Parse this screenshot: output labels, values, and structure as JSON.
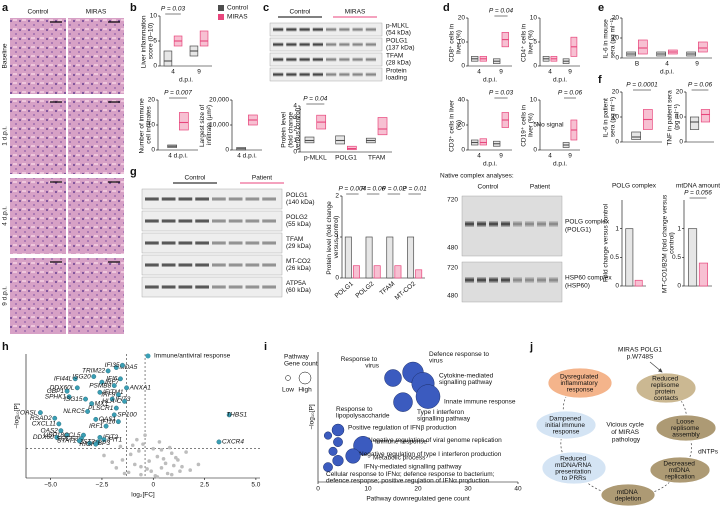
{
  "figure": {
    "panel_labels": [
      "a",
      "b",
      "c",
      "d",
      "e",
      "f",
      "g",
      "h",
      "i",
      "j"
    ],
    "legend": {
      "control": "Control",
      "miras": "MIRAS",
      "control_color": "#4d4d4d",
      "miras_color": "#e8467c"
    },
    "histology": {
      "columns": [
        "Control",
        "MIRAS"
      ],
      "rows": [
        "Baseline",
        "1 d.p.i.",
        "4 d.p.i.",
        "9 d.p.i."
      ]
    },
    "blot_c": {
      "groups": [
        "Control",
        "MIRAS"
      ],
      "rows": [
        [
          "p-MLKL",
          "(54 kDa)"
        ],
        [
          "POLG1",
          "(137 kDa)"
        ],
        [
          "TFAM",
          "(28 kDa)"
        ],
        [
          "Protein",
          "loading"
        ]
      ]
    },
    "blot_g": {
      "groups": [
        "Control",
        "Patient"
      ],
      "rows": [
        [
          "POLG1",
          "(140 kDa)"
        ],
        [
          "POLG2",
          "(55 kDa)"
        ],
        [
          "TFAM",
          "(29 kDa)"
        ],
        [
          "MT-CO2",
          "(26 kDa)"
        ],
        [
          "ATP5A",
          "(60 kDa)"
        ]
      ]
    },
    "native": {
      "title": "Native complex analyses:",
      "groups": [
        "Control",
        "Patient"
      ],
      "rows": [
        [
          "POLG complex",
          "(POLG1)"
        ],
        [
          "HSP60 complex",
          "(HSP60)"
        ]
      ],
      "markers": [
        720,
        480,
        720,
        480
      ]
    },
    "diagram": {
      "title": [
        "MIRAS POLG1",
        "p.W748S"
      ],
      "center": "Vicious cycle of MIRAS pathology",
      "side": "dNTPs",
      "nodes": [
        {
          "label": "Reduced replisome protein contacts",
          "color": "#cbb892"
        },
        {
          "label": "Loose replisome assembly",
          "color": "#ad9a74"
        },
        {
          "label": "Decreased mtDNA replication",
          "color": "#ad9a74"
        },
        {
          "label": "mtDNA depletion",
          "color": "#ad9a74"
        },
        {
          "label": "Reduced mtDNA/RNA presentation to PRRs",
          "color": "#d4e4f4"
        },
        {
          "label": "Dampened initial immune response",
          "color": "#d4e4f4"
        },
        {
          "label": "Dysregulated inflammatory response",
          "color": "#f4b48b"
        }
      ]
    }
  },
  "chart_data": [
    {
      "type": "box",
      "ylabel": "Liver inflammation score (0–10)",
      "ylim": [
        0,
        10
      ],
      "yticks": [
        0,
        5,
        10
      ],
      "categories": [
        "4",
        "9"
      ],
      "xlabel": "d.p.i.",
      "control": [
        [
          0,
          1,
          3
        ],
        [
          2,
          3,
          4
        ]
      ],
      "miras": [
        [
          4,
          5,
          6
        ],
        [
          4,
          5,
          7
        ]
      ],
      "pvalues": [
        "P = 0.03",
        null
      ]
    },
    {
      "type": "box",
      "ylabel": "Number of immune cell infiltrates",
      "ylim": [
        0,
        20
      ],
      "yticks": [
        0,
        10,
        20
      ],
      "categories": [
        "4 d.p.i."
      ],
      "control": [
        [
          1,
          1.5,
          2
        ]
      ],
      "miras": [
        [
          8,
          11,
          15
        ]
      ],
      "pvalues": [
        "P = 0.007"
      ]
    },
    {
      "type": "box",
      "ylabel": "Largest size of infiltrate (µm²)",
      "ylim": [
        0,
        20000
      ],
      "yticks": [
        0,
        {
          "value": 10000,
          "label": "10,000"
        },
        {
          "value": 20000,
          "label": "20,000"
        }
      ],
      "categories": [
        "4 d.p.i."
      ],
      "control": [
        [
          0,
          500,
          1000
        ]
      ],
      "miras": [
        [
          10000,
          12000,
          14000
        ]
      ],
      "pvalues": [
        null
      ]
    },
    {
      "type": "box",
      "ylabel": "Protein level (fold change versus control)",
      "ylim": [
        0,
        4
      ],
      "yticks": [
        0,
        1,
        2,
        3,
        4
      ],
      "categories": [
        "p-MLKL",
        "POLG1",
        "TFAM"
      ],
      "control": [
        [
          0.8,
          1,
          1.3
        ],
        [
          0.7,
          1,
          1.4
        ],
        [
          0.8,
          1,
          1.2
        ]
      ],
      "miras": [
        [
          2,
          2.6,
          3.2
        ],
        [
          0.2,
          0.3,
          0.5
        ],
        [
          1.5,
          2,
          3
        ]
      ],
      "pvalues": [
        "P = 0.04",
        null,
        null
      ]
    },
    {
      "type": "box",
      "ylabel": "CD8⁺ cells in liver (%)",
      "ylim": [
        0,
        20
      ],
      "yticks": [
        0,
        10,
        20
      ],
      "categories": [
        "4",
        "9"
      ],
      "xlabel": "d.p.i.",
      "control": [
        [
          2,
          3,
          4
        ],
        [
          1,
          2,
          3
        ]
      ],
      "miras": [
        [
          2,
          3,
          4
        ],
        [
          8,
          11,
          14
        ]
      ],
      "pvalues": [
        null,
        "P = 0.04"
      ]
    },
    {
      "type": "box",
      "ylabel": "CD4⁺ cells in liver (%)",
      "ylim": [
        0,
        10
      ],
      "yticks": [
        0,
        5,
        10
      ],
      "categories": [
        "4",
        "9"
      ],
      "xlabel": "d.p.i.",
      "control": [
        [
          1,
          1.5,
          2
        ],
        [
          0.5,
          1,
          1.5
        ]
      ],
      "miras": [
        [
          1,
          1.5,
          2
        ],
        [
          2,
          4,
          6
        ]
      ],
      "pvalues": [
        null,
        null
      ]
    },
    {
      "type": "box",
      "ylabel": "CD3⁺ cells in liver (%)",
      "ylim": [
        0,
        40
      ],
      "yticks": [
        0,
        20,
        40
      ],
      "categories": [
        "4",
        "9"
      ],
      "xlabel": "d.p.i.",
      "control": [
        [
          4,
          6,
          8
        ],
        [
          3,
          5,
          7
        ]
      ],
      "miras": [
        [
          4,
          6,
          9
        ],
        [
          18,
          24,
          30
        ]
      ],
      "pvalues": [
        null,
        "P = 0.03"
      ]
    },
    {
      "type": "box",
      "ylabel": "CD19⁺ cells in liver (%)",
      "ylim": [
        0,
        10
      ],
      "yticks": [
        0,
        5,
        10
      ],
      "categories": [
        "4",
        "9"
      ],
      "xlabel": "d.p.i.",
      "annotation": "No signal",
      "control": [
        null,
        [
          0.5,
          1,
          1.5
        ]
      ],
      "miras": [
        null,
        [
          2,
          4,
          6
        ]
      ],
      "pvalues": [
        null,
        "P = 0.06"
      ]
    },
    {
      "type": "box",
      "ylabel": "IL-6 in mouse sera (pg ml⁻¹)",
      "ylim": [
        0,
        20
      ],
      "yticks": [
        0,
        10,
        20
      ],
      "categories": [
        "B",
        "4",
        "9"
      ],
      "xlabel": "d.p.i.",
      "control": [
        [
          1,
          2,
          3
        ],
        [
          1,
          2,
          3
        ],
        [
          1,
          2,
          3
        ]
      ],
      "miras": [
        [
          2,
          5,
          9
        ],
        [
          2,
          3,
          4
        ],
        [
          3,
          5,
          8
        ]
      ],
      "pvalues": [
        null,
        null,
        null
      ]
    },
    {
      "type": "box",
      "ylabel": "IL-6 in patient sera (pg ml⁻¹)",
      "ylim": [
        0,
        20
      ],
      "yticks": [
        0,
        10,
        20
      ],
      "categories": [
        null
      ],
      "control": [
        [
          1,
          2,
          4
        ]
      ],
      "miras": [
        [
          5,
          9,
          13
        ]
      ],
      "pvalues": [
        "P = 0.0001"
      ]
    },
    {
      "type": "box",
      "ylabel": "TNF in patient sera (pg ml⁻¹)",
      "ylim": [
        0,
        20
      ],
      "yticks": [
        0,
        10,
        20
      ],
      "categories": [
        null
      ],
      "control": [
        [
          5,
          8,
          10
        ]
      ],
      "miras": [
        [
          8,
          11,
          13
        ]
      ],
      "pvalues": [
        "P = 0.06"
      ]
    },
    {
      "type": "bar",
      "ylabel": "Protein level (fold change versus control)",
      "ylim": [
        0,
        2
      ],
      "yticks": [
        0,
        1,
        2
      ],
      "categories": [
        "POLG1",
        "POLG2",
        "TFAM",
        "MT-CO2"
      ],
      "control": [
        1,
        1,
        1,
        1
      ],
      "miras": [
        0.3,
        0.3,
        0.3,
        0.2
      ],
      "pvalues": [
        "P = 0.004",
        "P = 0.06",
        "P = 0.02",
        "P = 0.01"
      ]
    },
    {
      "type": "bar",
      "title": "POLG complex",
      "ylabel": "Fold change versus control",
      "ylim": [
        0,
        1.5
      ],
      "yticks": [
        0,
        0.5,
        1
      ],
      "categories": [
        null
      ],
      "control": [
        1
      ],
      "miras": [
        0.1
      ],
      "pvalues": [
        null
      ]
    },
    {
      "type": "bar",
      "title": "mtDNA amount",
      "ylabel": "MT-CO1/B2M (fold change versus control)",
      "ylim": [
        0,
        1.5
      ],
      "yticks": [
        0,
        0.5,
        1
      ],
      "categories": [
        null
      ],
      "control": [
        1
      ],
      "miras": [
        0.4
      ],
      "pvalues": [
        "P = 0.056"
      ]
    },
    {
      "type": "scatter",
      "xlabel": "log₂[FC]",
      "ylabel": "−log₁₀[P]",
      "xlim": [
        -6.2,
        5.2
      ],
      "ylim": [
        0,
        11
      ],
      "xticks": [
        {
          "value": -5,
          "label": "−5.0"
        },
        {
          "value": -2.5,
          "label": "−2.5"
        },
        0,
        2.5,
        {
          "value": 5,
          "label": "5.0"
        }
      ],
      "thresholds": {
        "x": [
          -1.3,
          -0.4
        ],
        "y": 2.6
      },
      "points": {
        "color": "#bdbdbd",
        "x": [
          -1.2,
          -0.9,
          -0.6,
          -0.3,
          0.1,
          0.4,
          0.7,
          1.0,
          1.3,
          -1.5,
          -1.1,
          -0.7,
          -0.2,
          0.2,
          0.6,
          0.9,
          1.4,
          1.8,
          -2.0,
          -1.6,
          -0.5,
          0.0,
          0.3,
          0.8,
          1.1,
          -0.8,
          -0.4,
          0.5,
          -1.8,
          2.2,
          -2.4,
          1.6,
          -0.1,
          0.9,
          -1.0,
          0.2,
          -0.6,
          0.4,
          1.2,
          -1.4
        ],
        "y": [
          0.5,
          1.2,
          0.3,
          0.8,
          0.2,
          0.9,
          0.4,
          1.1,
          0.6,
          1.6,
          2.1,
          2.4,
          1.5,
          1.9,
          1.3,
          2.2,
          1.0,
          0.7,
          1.4,
          2.8,
          3.0,
          2.6,
          3.2,
          2.7,
          1.8,
          3.4,
          3.8,
          1.7,
          0.9,
          1.2,
          2.0,
          2.3,
          0.6,
          0.3,
          2.9,
          0.1,
          1.0,
          2.5,
          1.6,
          0.4
        ]
      },
      "series": [
        {
          "name": "Immune/antiviral response",
          "color": "#3a9fb5",
          "labels": [
            "TRIM22",
            "MDA5",
            "IFI35",
            "IFI44L",
            "ISG20",
            "IRF7",
            "IFI6",
            "DDX60L",
            "PSMB8",
            "ANXA1",
            "GBP1",
            "IFITM1",
            "IRF9",
            "SPHK1",
            "ISG15",
            "IFIT3",
            "HLA-C",
            "MX1",
            "PLSCR1",
            "OASL",
            "NLRC5",
            "SP100",
            "RSAD2",
            "OAS1",
            "IFI16",
            "CXCL11",
            "IRF1",
            "OAS2",
            "USP18",
            "IFIT2",
            "CCL5",
            "DDX60",
            "SOCS3",
            "IFIT1",
            "BST2",
            "GBP3",
            "RIGI",
            "STAT1",
            "THBS1",
            "CXCR4"
          ],
          "x": [
            -2.2,
            -1.8,
            -1.5,
            -3.8,
            -2.9,
            -2.5,
            -1.6,
            -3.7,
            -1.9,
            -1.3,
            -4.2,
            -2.6,
            -1.7,
            -4.1,
            -3.3,
            -2.0,
            -1.4,
            -3.0,
            -1.8,
            -5.5,
            -3.2,
            -1.9,
            -4.8,
            -2.8,
            -1.7,
            -4.6,
            -2.3,
            -4.5,
            -4.2,
            -2.6,
            -3.4,
            -4.7,
            -3.5,
            -2.4,
            -2.7,
            -3.1,
            -2.8,
            -3.6,
            3.7,
            3.2
          ],
          "y": [
            9.5,
            9.8,
            10.0,
            8.8,
            9.0,
            8.5,
            8.8,
            8.0,
            8.2,
            8.0,
            7.7,
            7.6,
            7.4,
            7.2,
            7.0,
            7.0,
            6.8,
            6.6,
            6.2,
            5.8,
            5.9,
            5.6,
            5.3,
            5.2,
            5.0,
            4.8,
            4.6,
            4.2,
            3.8,
            3.6,
            3.8,
            3.6,
            3.5,
            3.4,
            3.2,
            3.1,
            3.0,
            3.3,
            5.6,
            3.2
          ]
        }
      ]
    },
    {
      "type": "bubble",
      "xlabel": "Pathway downregulated gene count",
      "ylabel": "−log₁₀[P]",
      "xlim": [
        0,
        40
      ],
      "ylim": [
        0,
        14
      ],
      "xticks": [
        0,
        10,
        20,
        30,
        40
      ],
      "color": "#3b5bbf",
      "size_title": [
        "Pathway",
        "Gene count"
      ],
      "size_legend": [
        "Low",
        "High"
      ],
      "labels": [
        "Response to virus",
        "Defence response to virus",
        "Cytokine-mediated signalling pathway",
        "Innate immune response",
        "Type I interferon signalling pathway",
        "Response to lipopolysaccharide",
        "Positive regulation of IFNβ production",
        "Negative regulation of viral genome replication",
        "Immune response",
        "Negative regulation of type I interferon production",
        "Metabolic process",
        "IFNγ-mediated signalling pathway",
        "Cellular response to IFNα; defence response to bacterium; defence response; positive regulation of IFNα production"
      ],
      "x": [
        15,
        19,
        21,
        22,
        17,
        4,
        2,
        4,
        9,
        3,
        7,
        4,
        2
      ],
      "y": [
        11.2,
        11.8,
        10.6,
        9.2,
        8.6,
        5.6,
        5.0,
        4.3,
        3.9,
        3.3,
        2.8,
        2.3,
        1.6
      ],
      "size": [
        200,
        300,
        350,
        400,
        250,
        100,
        40,
        60,
        250,
        50,
        150,
        80,
        60
      ]
    }
  ]
}
